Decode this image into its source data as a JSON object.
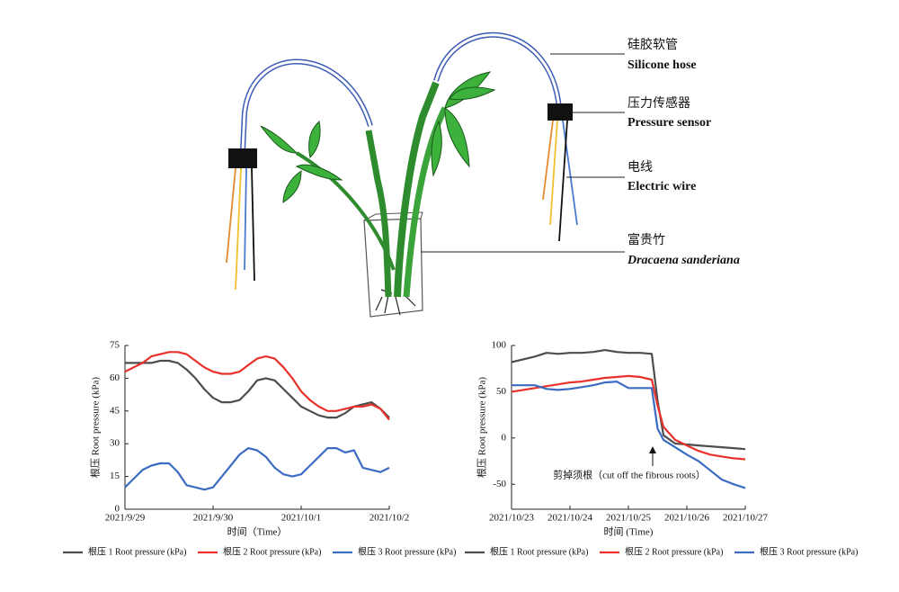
{
  "diagram": {
    "labels": [
      {
        "zh": "硅胶软管",
        "en": "Silicone hose"
      },
      {
        "zh": "压力传感器",
        "en": "Pressure sensor"
      },
      {
        "zh": "电线",
        "en": "Electric wire"
      },
      {
        "zh": "富贵竹",
        "en": "Dracaena sanderiana"
      }
    ]
  },
  "chart_data": [
    {
      "type": "line",
      "xlabel": "时间（Time）",
      "ylabel": "根压 Root pressure (kPa)",
      "x": [
        0,
        0.1,
        0.2,
        0.3,
        0.4,
        0.5,
        0.6,
        0.7,
        0.8,
        0.9,
        1.0,
        1.1,
        1.2,
        1.3,
        1.4,
        1.5,
        1.6,
        1.7,
        1.8,
        1.9,
        2.0,
        2.1,
        2.2,
        2.3,
        2.4,
        2.5,
        2.6,
        2.7,
        2.8,
        2.9,
        3.0
      ],
      "xlim": [
        0,
        3
      ],
      "xticks": [
        {
          "value": 0,
          "label": "2021/9/29"
        },
        {
          "value": 1,
          "label": "2021/9/30"
        },
        {
          "value": 2,
          "label": "2021/10/1"
        },
        {
          "value": 3,
          "label": "2021/10/2"
        }
      ],
      "ylim": [
        0,
        75
      ],
      "yticks": [
        0,
        15,
        30,
        45,
        60,
        75
      ],
      "series": [
        {
          "name": "根压 1 Root pressure (kPa)",
          "color": "#4d4d4d",
          "values": [
            67,
            67,
            67,
            67,
            68,
            68,
            67,
            64,
            60,
            55,
            51,
            49,
            49,
            50,
            54,
            59,
            60,
            59,
            55,
            51,
            47,
            45,
            43,
            42,
            42,
            44,
            47,
            48,
            49,
            46,
            42
          ]
        },
        {
          "name": "根压 2 Root pressure (kPa)",
          "color": "#e8312a",
          "values": [
            63,
            65,
            67,
            70,
            71,
            72,
            72,
            71,
            68,
            65,
            63,
            62,
            62,
            63,
            66,
            69,
            70,
            69,
            65,
            60,
            54,
            50,
            47,
            45,
            45,
            46,
            47,
            47,
            48,
            46,
            41
          ]
        },
        {
          "name": "根压 3 Root pressure (kPa)",
          "color": "#3b6cc2",
          "values": [
            10,
            14,
            18,
            20,
            21,
            21,
            17,
            11,
            10,
            9,
            10,
            15,
            20,
            25,
            28,
            27,
            24,
            19,
            16,
            15,
            16,
            20,
            24,
            28,
            28,
            26,
            27,
            19,
            18,
            17,
            19
          ]
        }
      ]
    },
    {
      "type": "line",
      "xlabel": "时间 (Time)",
      "ylabel": "根压 Root pressure (kPa)",
      "annotation": "剪掉须根（cut off the fibrous roots）",
      "x": [
        0,
        0.2,
        0.4,
        0.6,
        0.8,
        1.0,
        1.2,
        1.4,
        1.6,
        1.8,
        2.0,
        2.2,
        2.4,
        2.5,
        2.6,
        2.8,
        3.0,
        3.2,
        3.4,
        3.6,
        3.8,
        4.0
      ],
      "xlim": [
        0,
        4
      ],
      "xticks": [
        {
          "value": 0,
          "label": "2021/10/23"
        },
        {
          "value": 1,
          "label": "2021/10/24"
        },
        {
          "value": 2,
          "label": "2021/10/25"
        },
        {
          "value": 3,
          "label": "2021/10/26"
        },
        {
          "value": 4,
          "label": "2021/10/27"
        }
      ],
      "ylim": [
        -77,
        100
      ],
      "yticks": [
        -50,
        0,
        50,
        100
      ],
      "series": [
        {
          "name": "根压 1 Root pressure (kPa)",
          "color": "#4d4d4d",
          "values": [
            82,
            85,
            88,
            92,
            91,
            92,
            92,
            93,
            95,
            93,
            92,
            92,
            91,
            40,
            3,
            -6,
            -7,
            -8,
            -9,
            -10,
            -11,
            -12
          ]
        },
        {
          "name": "根压 2 Root pressure (kPa)",
          "color": "#e8312a",
          "values": [
            50,
            52,
            54,
            56,
            58,
            60,
            61,
            63,
            65,
            66,
            67,
            66,
            63,
            35,
            12,
            -2,
            -8,
            -14,
            -18,
            -20,
            -22,
            -23
          ]
        },
        {
          "name": "根压 3 Root pressure (kPa)",
          "color": "#3b6cc2",
          "values": [
            57,
            57,
            57,
            53,
            52,
            53,
            55,
            57,
            60,
            61,
            54,
            54,
            54,
            10,
            -2,
            -10,
            -18,
            -25,
            -35,
            -45,
            -50,
            -54
          ]
        }
      ]
    }
  ]
}
